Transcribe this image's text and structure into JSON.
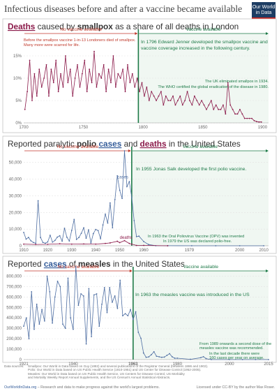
{
  "title": "Infectious diseases before and after a vaccine became available",
  "logo": [
    "Our World",
    "in Data"
  ],
  "zones": {
    "before": "No vaccine available",
    "after": "Vaccine available"
  },
  "chart_data": [
    {
      "type": "line",
      "title_parts": [
        "Deaths",
        " caused by ",
        "smallpox",
        " as a share of all deaths in London"
      ],
      "x_ticks": [
        1700,
        1750,
        1800,
        1850,
        1900
      ],
      "y_ticks": [
        0,
        5,
        10,
        15
      ],
      "y_tick_labels": [
        "0%",
        "5%",
        "10%",
        "15%"
      ],
      "xlim": [
        1700,
        1905
      ],
      "ylim": [
        0,
        20
      ],
      "vaccine_year": 1796,
      "series": [
        {
          "x": [
            1701,
            1703,
            1705,
            1707,
            1709,
            1711,
            1713,
            1715,
            1717,
            1719,
            1721,
            1723,
            1725,
            1727,
            1729,
            1731,
            1733,
            1735,
            1737,
            1739,
            1741,
            1743,
            1745,
            1747,
            1749,
            1751,
            1753,
            1755,
            1757,
            1759,
            1761,
            1763,
            1765,
            1767,
            1769,
            1771,
            1773,
            1775,
            1777,
            1779,
            1781,
            1783,
            1785,
            1787,
            1789,
            1791,
            1793,
            1795,
            1797,
            1799,
            1801,
            1803,
            1805,
            1807,
            1809,
            1811,
            1813,
            1815,
            1817,
            1819,
            1821,
            1823,
            1825,
            1827,
            1829,
            1831,
            1833,
            1835,
            1837,
            1839,
            1841,
            1843,
            1845,
            1847,
            1849,
            1851,
            1853,
            1855,
            1857,
            1859,
            1861,
            1863,
            1865,
            1867,
            1869,
            1871,
            1873,
            1875,
            1877,
            1879,
            1881,
            1883,
            1885,
            1887,
            1889,
            1891,
            1893,
            1895,
            1897,
            1899
          ],
          "y": [
            3,
            7,
            14,
            5,
            11,
            6,
            12,
            8,
            10,
            13,
            6,
            12,
            9,
            14,
            7,
            11,
            8,
            15,
            9,
            12,
            6,
            10,
            13,
            8,
            11,
            14,
            7,
            12,
            9,
            16,
            8,
            11,
            10,
            13,
            7,
            12,
            9,
            15,
            8,
            11,
            10,
            12,
            7,
            13,
            9,
            11,
            8,
            10,
            7,
            9,
            6,
            8,
            5,
            7,
            6,
            5,
            6,
            7,
            4,
            6,
            5,
            5,
            6,
            4,
            5,
            6,
            4,
            5,
            7,
            5,
            4,
            6,
            5,
            4,
            5,
            4,
            3,
            4,
            5,
            3,
            4,
            3,
            3,
            4,
            2,
            9,
            4,
            3,
            2,
            2,
            3,
            2,
            1,
            1,
            1,
            1,
            0.5,
            0.3,
            0.2,
            0.2
          ]
        }
      ],
      "annotations": {
        "before": "Before the smallpox vaccine 1-in-13 Londoners died of smallpox. Many more were scarred for life.",
        "jenner": "In 1796 Edward Jenner developed the smallpox vaccine and vaccine coverage increased in the following century.",
        "uk_elim": "The UK eliminated smallpox in 1934.",
        "who": "The WHO certified the global eradication of the disease in 1980."
      }
    },
    {
      "type": "line",
      "title_parts": [
        "Reported paralytic ",
        "polio",
        " ",
        "cases",
        " and ",
        "deaths",
        " in the United States"
      ],
      "x_ticks": [
        1910,
        1920,
        1930,
        1940,
        1950,
        1960,
        1979,
        2000,
        2010
      ],
      "y_ticks": [
        0,
        10000,
        20000,
        30000,
        40000,
        50000
      ],
      "y_tick_labels": [
        "0",
        "10,000",
        "20,000",
        "30,000",
        "40,000",
        "50,000"
      ],
      "xlim": [
        1910,
        2012
      ],
      "ylim": [
        0,
        57000
      ],
      "vaccine_year": 1955,
      "series": [
        {
          "name": "cases",
          "x": [
            1910,
            1911,
            1912,
            1913,
            1914,
            1915,
            1916,
            1917,
            1918,
            1919,
            1920,
            1921,
            1922,
            1923,
            1924,
            1925,
            1926,
            1927,
            1928,
            1929,
            1930,
            1931,
            1932,
            1933,
            1934,
            1935,
            1936,
            1937,
            1938,
            1939,
            1940,
            1941,
            1942,
            1943,
            1944,
            1945,
            1946,
            1947,
            1948,
            1949,
            1950,
            1951,
            1952,
            1953,
            1954,
            1955,
            1956,
            1957,
            1958,
            1960,
            1962,
            1965,
            1970,
            1980,
            1990,
            2000,
            2010
          ],
          "y": [
            8000,
            4000,
            5000,
            3000,
            2000,
            1500,
            27000,
            5000,
            2000,
            1500,
            2300,
            6300,
            2200,
            3200,
            5200,
            6000,
            2800,
            10500,
            5100,
            2900,
            9200,
            15800,
            3800,
            5000,
            7500,
            10800,
            4500,
            9500,
            1700,
            7300,
            9800,
            9100,
            4200,
            12500,
            19000,
            13600,
            25700,
            10800,
            27700,
            42000,
            33300,
            28400,
            57000,
            35500,
            38500,
            28985,
            15140,
            5485,
            5787,
            2525,
            762,
            61,
            33,
            9,
            6,
            0,
            0
          ]
        },
        {
          "name": "deaths",
          "x": [
            1910,
            1915,
            1920,
            1925,
            1930,
            1935,
            1940,
            1944,
            1946,
            1949,
            1950,
            1952,
            1954,
            1955,
            1957,
            1960,
            1970
          ],
          "y": [
            1000,
            800,
            900,
            1200,
            1000,
            1100,
            1000,
            1400,
            1700,
            2700,
            1900,
            3100,
            1400,
            1000,
            200,
            230,
            7
          ]
        }
      ],
      "annotations": {
        "salk": "In 1955 Jonas Salk developed the first polio vaccine.",
        "opv": "In 1963 the Oral Poliovirus Vaccine (OPV) was invented",
        "free": "In 1979 the US was declared polio-free."
      }
    },
    {
      "type": "line",
      "title_parts": [
        "Reported ",
        "cases",
        " of ",
        "measles",
        " in the United States"
      ],
      "x_ticks": [
        1921,
        1940,
        1963,
        1980,
        2000,
        2015
      ],
      "y_ticks": [
        0,
        100000,
        200000,
        300000,
        400000,
        500000,
        600000,
        700000,
        800000
      ],
      "y_tick_labels": [
        "0",
        "100,000",
        "200,000",
        "300,000",
        "400,000",
        "500,000",
        "600,000",
        "700,000",
        "800,000"
      ],
      "xlim": [
        1921,
        2015
      ],
      "ylim": [
        0,
        850000
      ],
      "vaccine_year": 1963,
      "series": [
        {
          "x": [
            1921,
            1922,
            1923,
            1924,
            1925,
            1926,
            1927,
            1928,
            1929,
            1930,
            1931,
            1932,
            1933,
            1934,
            1935,
            1936,
            1937,
            1938,
            1939,
            1940,
            1941,
            1942,
            1943,
            1944,
            1945,
            1946,
            1947,
            1948,
            1949,
            1950,
            1951,
            1952,
            1953,
            1954,
            1955,
            1956,
            1957,
            1958,
            1959,
            1960,
            1961,
            1962,
            1963,
            1964,
            1965,
            1966,
            1967,
            1968,
            1969,
            1970,
            1971,
            1972,
            1973,
            1974,
            1975,
            1976,
            1977,
            1978,
            1979,
            1980,
            1985,
            1989,
            1990,
            1991,
            1993,
            2000,
            2005,
            2010,
            2015
          ],
          "y": [
            320000,
            400000,
            200000,
            650000,
            290000,
            530000,
            340000,
            480000,
            370000,
            800000,
            650000,
            350000,
            600000,
            750000,
            700000,
            340000,
            300000,
            780000,
            400000,
            290000,
            890000,
            520000,
            630000,
            610000,
            150000,
            680000,
            220000,
            620000,
            630000,
            320000,
            530000,
            690000,
            450000,
            690000,
            550000,
            610000,
            490000,
            760000,
            420000,
            440000,
            420000,
            480000,
            385000,
            458000,
            262000,
            204000,
            63000,
            22000,
            26000,
            47000,
            75000,
            32000,
            27000,
            22000,
            24000,
            41000,
            57000,
            27000,
            13000,
            13506,
            2822,
            18193,
            27786,
            9643,
            312,
            86,
            66,
            63,
            188
          ]
        }
      ],
      "annotations": {
        "intro": "In 1963 the measles vaccine was introduced in the US",
        "second": "From 1989 onwards a second dose of the measles vaccine was recommended.",
        "decade": "In the last decade there were 160 cases per year on average."
      }
    }
  ],
  "footer": {
    "sources_label": "Data sources:",
    "sources": [
      "Smallpox: Our World in Data based on Guy (1882) and several publications of the Registrar General (between 1886 and 1902).",
      "Polio: Our World in Data based on US Public Health Service (1910-1951) and US Center for Disease Control (1952-2005).",
      "Measles: Our World in Data based on US Public Health Service, US Centers for Disease Control, US Morbidity",
      "and Mortality Weekly Report Annual Supplements, and the US Census's Annual Statistical Abstracts."
    ],
    "site": "OurWorldInData.org",
    "site_suffix": " – Research and data to make progress against the world's largest problems.",
    "license": "Licensed under CC-BY by the author Max Roser."
  }
}
